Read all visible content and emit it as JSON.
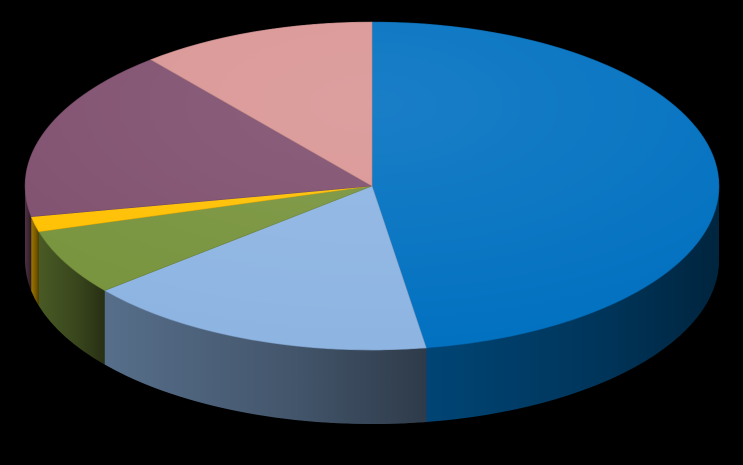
{
  "chart_data": {
    "type": "pie",
    "style": "3d",
    "background": "#000000",
    "start": "12 o'clock",
    "direction": "clockwise",
    "slices": [
      {
        "value": 47.5,
        "color": "#0070C0"
      },
      {
        "value": 16.5,
        "color": "#8DB4E2"
      },
      {
        "value": 6.5,
        "color": "#77933C"
      },
      {
        "value": 1.5,
        "color": "#FFC000"
      },
      {
        "value": 17.0,
        "color": "#7F4F6E"
      },
      {
        "value": 11.0,
        "color": "#D99594"
      }
    ]
  }
}
